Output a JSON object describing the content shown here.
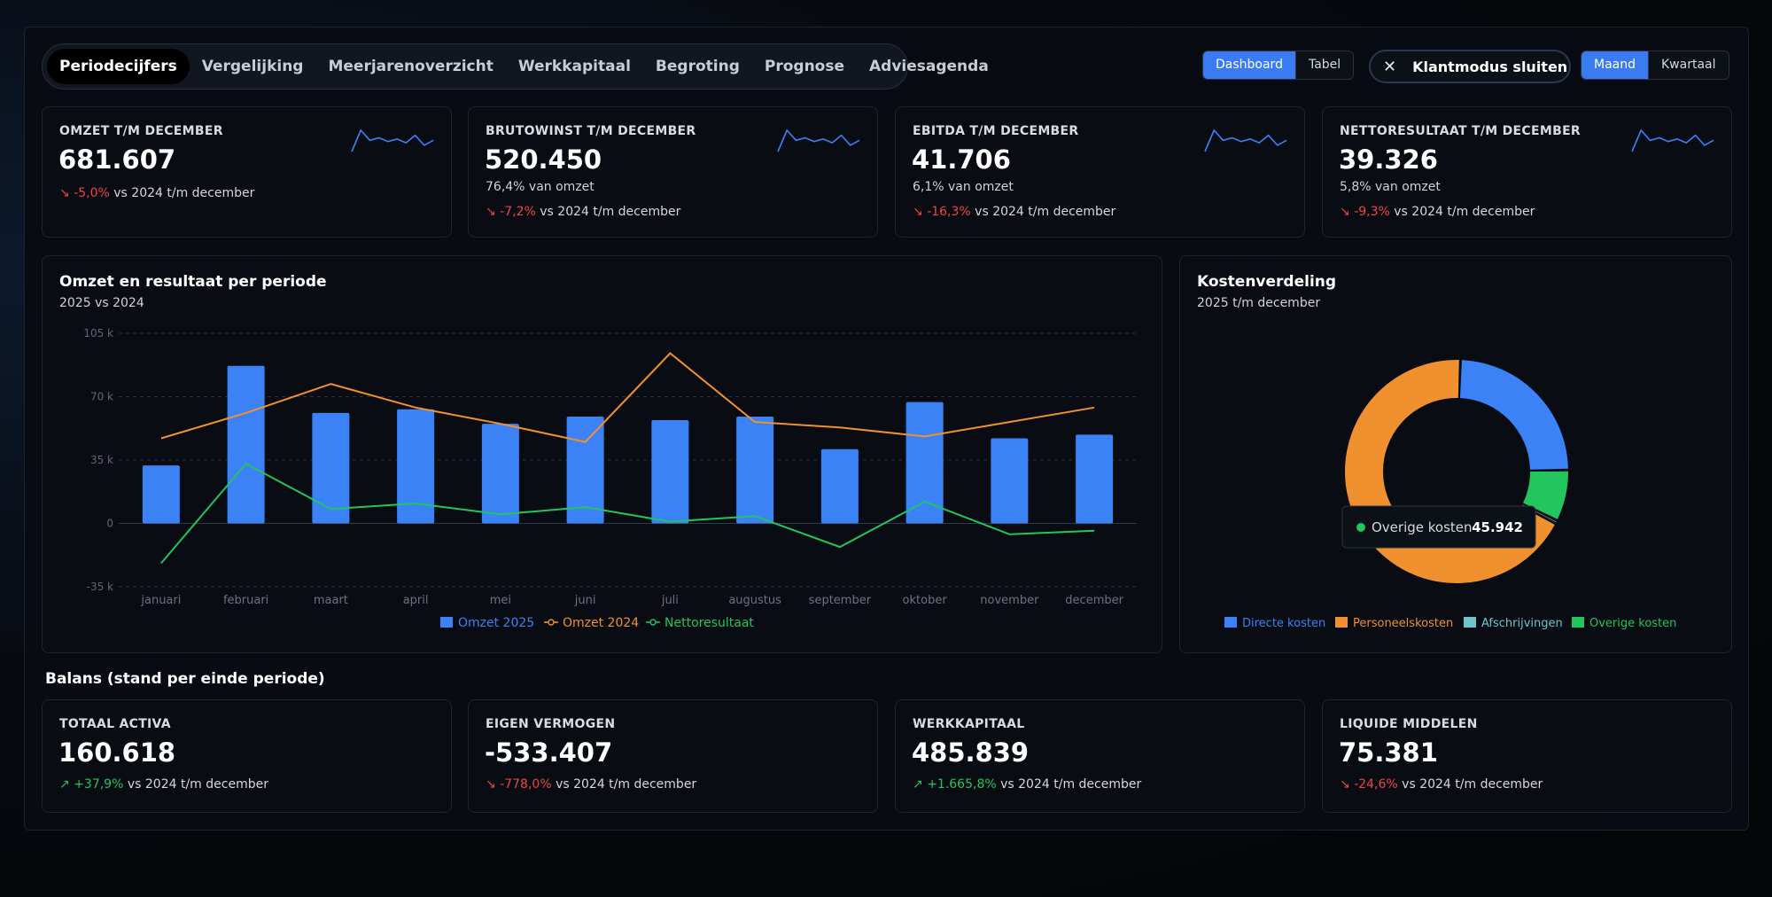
{
  "nav": {
    "tabs": [
      "Periodecijfers",
      "Vergelijking",
      "Meerjarenoverzicht",
      "Werkkapitaal",
      "Begroting",
      "Prognose",
      "Adviesagenda"
    ],
    "active": "Periodecijfers"
  },
  "view_toggle": {
    "options": [
      "Dashboard",
      "Tabel"
    ],
    "selected": "Dashboard"
  },
  "klantmodus_label": "Klantmodus sluiten",
  "period_toggle": {
    "options": [
      "Maand",
      "Kwartaal"
    ],
    "selected": "Maand"
  },
  "kpis": [
    {
      "title": "OMZET T/M DECEMBER",
      "value": "681.607",
      "sub": "",
      "change": "-5,0%",
      "direction": "down",
      "compare": "vs 2024 t/m december"
    },
    {
      "title": "BRUTOWINST T/M DECEMBER",
      "value": "520.450",
      "sub": "76,4% van omzet",
      "change": "-7,2%",
      "direction": "down",
      "compare": "vs 2024 t/m december"
    },
    {
      "title": "EBITDA T/M DECEMBER",
      "value": "41.706",
      "sub": "6,1% van omzet",
      "change": "-16,3%",
      "direction": "down",
      "compare": "vs 2024 t/m december"
    },
    {
      "title": "NETTORESULTAAT T/M DECEMBER",
      "value": "39.326",
      "sub": "5,8% van omzet",
      "change": "-9,3%",
      "direction": "down",
      "compare": "vs 2024 t/m december"
    }
  ],
  "main_chart": {
    "title": "Omzet en resultaat per periode",
    "subtitle": "2025 vs 2024"
  },
  "donut": {
    "title": "Kostenverdeling",
    "subtitle": "2025 t/m december",
    "tooltip": {
      "label": "Overige kosten",
      "value": "45.942"
    }
  },
  "balans": {
    "title": "Balans (stand per einde periode)",
    "cards": [
      {
        "title": "TOTAAL ACTIVA",
        "value": "160.618",
        "change": "+37,9%",
        "direction": "up",
        "compare": "vs 2024 t/m december"
      },
      {
        "title": "EIGEN VERMOGEN",
        "value": "-533.407",
        "change": "-778,0%",
        "direction": "down",
        "compare": "vs 2024 t/m december"
      },
      {
        "title": "WERKKAPITAAL",
        "value": "485.839",
        "change": "+1.665,8%",
        "direction": "up",
        "compare": "vs 2024 t/m december"
      },
      {
        "title": "LIQUIDE MIDDELEN",
        "value": "75.381",
        "change": "-24,6%",
        "direction": "down",
        "compare": "vs 2024 t/m december"
      }
    ]
  },
  "colors": {
    "accent": "#3a7bf2",
    "bar": "#3b82f6",
    "omzet2024": "#f0902f",
    "netto": "#22c55e",
    "negative": "#ef4444",
    "positive": "#22c55e",
    "afschrijvingen": "#6fc3c9"
  },
  "chart_data": [
    {
      "type": "bar",
      "categories": [
        "januari",
        "februari",
        "maart",
        "april",
        "mei",
        "juni",
        "juli",
        "augustus",
        "september",
        "oktober",
        "november",
        "december"
      ],
      "series": [
        {
          "name": "Omzet 2025",
          "type": "bar",
          "values": [
            32000,
            87000,
            61000,
            63000,
            55000,
            59000,
            57000,
            59000,
            41000,
            67000,
            47000,
            49000
          ]
        },
        {
          "name": "Omzet 2024",
          "type": "line",
          "values": [
            47000,
            61000,
            77000,
            64000,
            55000,
            45000,
            94000,
            56000,
            53000,
            48000,
            56000,
            64000
          ]
        },
        {
          "name": "Nettoresultaat",
          "type": "line",
          "values": [
            -22000,
            33000,
            8000,
            11000,
            5000,
            9000,
            1000,
            4000,
            -13000,
            12000,
            -6000,
            -4000
          ]
        }
      ],
      "yticks": [
        "105 k",
        "70 k",
        "35 k",
        "0",
        "-35 k"
      ],
      "ylim": [
        -35000,
        105000
      ],
      "grid": true,
      "legend": "bottom"
    },
    {
      "type": "pie",
      "labels": [
        "Directe kosten",
        "Personeelskosten",
        "Afschrijvingen",
        "Overige kosten"
      ],
      "values": [
        150000,
        420000,
        3000,
        45942
      ],
      "colors": [
        "#3b82f6",
        "#f0902f",
        "#6fc3c9",
        "#22c55e"
      ],
      "legend": "bottom"
    }
  ],
  "sparklines": [
    [
      5,
      22,
      14,
      16,
      13,
      15,
      12,
      18,
      10,
      14
    ],
    [
      5,
      22,
      14,
      16,
      13,
      15,
      12,
      18,
      10,
      14
    ],
    [
      5,
      22,
      14,
      16,
      13,
      15,
      12,
      18,
      10,
      14
    ],
    [
      5,
      22,
      14,
      16,
      13,
      15,
      12,
      18,
      10,
      14
    ]
  ]
}
